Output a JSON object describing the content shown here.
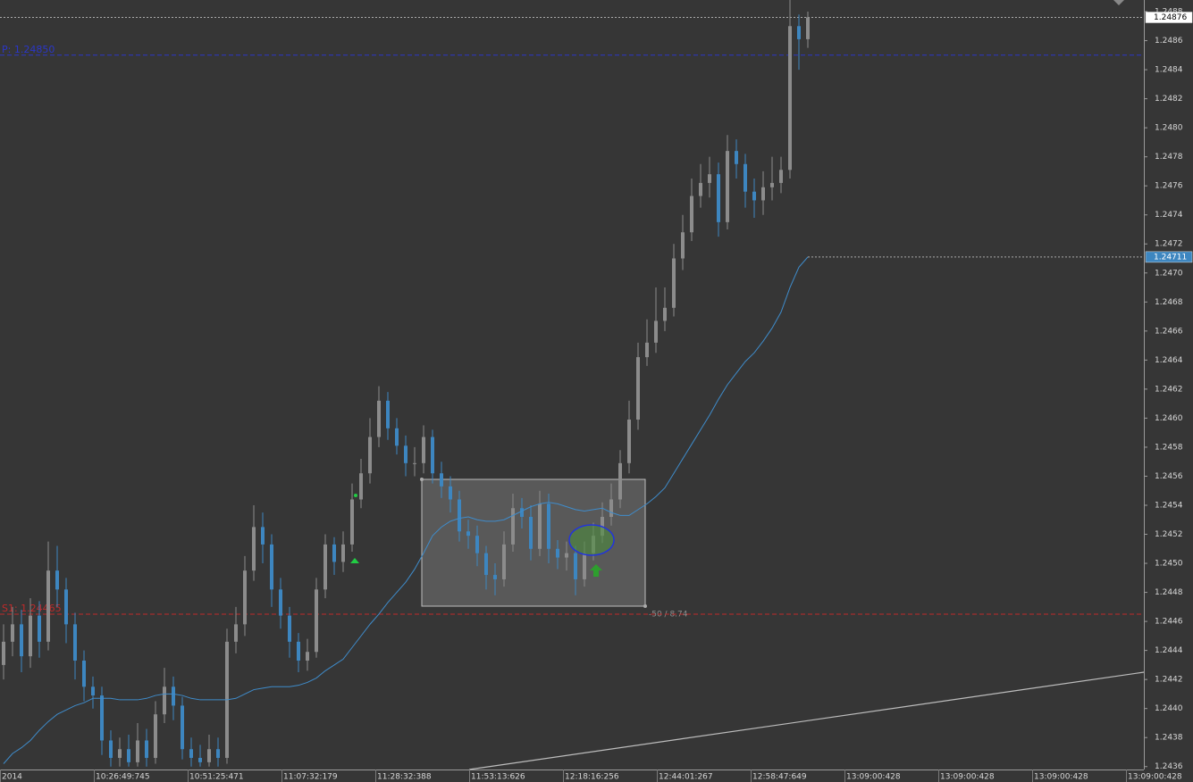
{
  "chart_data": {
    "type": "candlestick",
    "ylim": [
      1.24358,
      1.24888
    ],
    "yticks": [
      1.2436,
      1.2438,
      {
        "value": 1.244,
        "label": "1.2440"
      },
      1.2442,
      1.2444,
      1.2446,
      1.2448,
      {
        "value": 1.245,
        "label": "1.2450"
      },
      1.2452,
      1.2454,
      1.2456,
      1.2458,
      {
        "value": 1.246,
        "label": "1.2460"
      },
      1.2462,
      1.2464,
      1.2466,
      1.2468,
      {
        "value": 1.247,
        "label": "1.2470"
      },
      1.2472,
      1.2474,
      1.2476,
      1.2478,
      {
        "value": 1.248,
        "label": "1.2480"
      },
      1.2482,
      1.2484,
      1.2486,
      1.2488
    ],
    "x_labels": [
      "2014",
      "10:26:49:745",
      "10:51:25:471",
      "11:07:32:179",
      "11:28:32:388",
      "11:53:13:626",
      "12:18:16:256",
      "12:44:01:267",
      "12:58:47:649",
      "13:09:00:428",
      "13:09:00:428",
      "13:09:00:428",
      "13:09:00:428"
    ],
    "up_color": "#8c8c8c",
    "down_color": "#3d86c0",
    "open": [
      1.2443,
      1.24446,
      1.24458,
      1.24436,
      1.24464,
      1.24446,
      1.24495,
      1.24482,
      1.24458,
      1.24433,
      1.24415,
      1.24409,
      1.24378,
      1.24366,
      1.24372,
      1.24363,
      1.24378,
      1.24366,
      1.24396,
      1.24415,
      1.24402,
      1.24372,
      1.24366,
      1.24363,
      1.24372,
      1.24366,
      1.24446,
      1.24458,
      1.24495,
      1.24525,
      1.24513,
      1.24482,
      1.24464,
      1.24446,
      1.24433,
      1.24439,
      1.24482,
      1.24513,
      1.24501,
      1.24513,
      1.24544,
      1.24562,
      1.24587,
      1.24612,
      1.24593,
      1.24581,
      1.24569,
      1.24569,
      1.24587,
      1.24562,
      1.24553,
      1.24544,
      1.24522,
      1.24519,
      1.24507,
      1.24492,
      1.24489,
      1.24513,
      1.24538,
      1.24532,
      1.2451,
      1.24541,
      1.2451,
      1.24504,
      1.24507,
      1.24489,
      1.24507,
      1.24519,
      1.24532,
      1.24544,
      1.24569,
      1.24599,
      1.24642,
      1.24652,
      1.24667,
      1.24676,
      1.2471,
      1.24728,
      1.24753,
      1.24762,
      1.24768,
      1.24735,
      1.24784,
      1.24775,
      1.24756,
      1.2475,
      1.24759,
      1.24762,
      1.24771,
      1.2487,
      1.24861
    ],
    "high": [
      1.24458,
      1.2447,
      1.24468,
      1.24476,
      1.24474,
      1.24515,
      1.24512,
      1.2449,
      1.24466,
      1.2444,
      1.24422,
      1.24415,
      1.24385,
      1.2438,
      1.24382,
      1.2439,
      1.24386,
      1.24405,
      1.24428,
      1.24422,
      1.24408,
      1.2438,
      1.24375,
      1.24382,
      1.2438,
      1.24455,
      1.2447,
      1.24505,
      1.2454,
      1.24535,
      1.2452,
      1.2449,
      1.2447,
      1.24452,
      1.24448,
      1.2449,
      1.2452,
      1.24518,
      1.24522,
      1.24555,
      1.24572,
      1.246,
      1.24622,
      1.24618,
      1.246,
      1.24588,
      1.2458,
      1.24595,
      1.24592,
      1.2457,
      1.2456,
      1.2455,
      1.2453,
      1.24526,
      1.24512,
      1.245,
      1.24522,
      1.24548,
      1.24545,
      1.2454,
      1.2455,
      1.24548,
      1.24516,
      1.24515,
      1.24512,
      1.24515,
      1.24528,
      1.24542,
      1.24555,
      1.24578,
      1.24612,
      1.24652,
      1.24668,
      1.2469,
      1.2469,
      1.2472,
      1.2474,
      1.24765,
      1.24775,
      1.2478,
      1.24776,
      1.24795,
      1.24792,
      1.24782,
      1.24765,
      1.2477,
      1.2478,
      1.2478,
      1.2489,
      1.24878,
      1.2488
    ],
    "low": [
      1.2442,
      1.24436,
      1.24425,
      1.24428,
      1.24435,
      1.2444,
      1.2447,
      1.24445,
      1.2442,
      1.24405,
      1.244,
      1.24368,
      1.2436,
      1.2436,
      1.2436,
      1.2436,
      1.2436,
      1.24362,
      1.2439,
      1.24392,
      1.24365,
      1.2436,
      1.2436,
      1.2436,
      1.2436,
      1.24362,
      1.24438,
      1.2445,
      1.24488,
      1.245,
      1.2447,
      1.24455,
      1.24435,
      1.24425,
      1.24426,
      1.24435,
      1.24476,
      1.24492,
      1.24494,
      1.24508,
      1.24538,
      1.24555,
      1.2458,
      1.24585,
      1.24575,
      1.2456,
      1.2456,
      1.24562,
      1.24555,
      1.24545,
      1.24535,
      1.24515,
      1.2451,
      1.24498,
      1.24482,
      1.24478,
      1.24484,
      1.24508,
      1.24524,
      1.24502,
      1.24505,
      1.245,
      1.24496,
      1.24495,
      1.24478,
      1.24484,
      1.24502,
      1.24514,
      1.24526,
      1.24538,
      1.24562,
      1.24592,
      1.24636,
      1.24645,
      1.2466,
      1.2467,
      1.24702,
      1.24722,
      1.24745,
      1.24752,
      1.24725,
      1.2473,
      1.24765,
      1.24745,
      1.24738,
      1.2474,
      1.2475,
      1.24755,
      1.24765,
      1.2484,
      1.24855
    ],
    "close": [
      1.24446,
      1.24458,
      1.24436,
      1.24464,
      1.24446,
      1.24495,
      1.24482,
      1.24458,
      1.24433,
      1.24415,
      1.24409,
      1.24378,
      1.24366,
      1.24372,
      1.24363,
      1.24378,
      1.24366,
      1.24396,
      1.24415,
      1.24402,
      1.24372,
      1.24366,
      1.24363,
      1.24372,
      1.24366,
      1.24446,
      1.24458,
      1.24495,
      1.24525,
      1.24513,
      1.24482,
      1.24464,
      1.24446,
      1.24433,
      1.24439,
      1.24482,
      1.24513,
      1.24501,
      1.24513,
      1.24544,
      1.24562,
      1.24587,
      1.24612,
      1.24593,
      1.24581,
      1.24569,
      1.24569,
      1.24587,
      1.24562,
      1.24553,
      1.24544,
      1.24522,
      1.24519,
      1.24507,
      1.24492,
      1.24489,
      1.24513,
      1.24538,
      1.24532,
      1.2451,
      1.24541,
      1.2451,
      1.24504,
      1.24507,
      1.24489,
      1.24507,
      1.24519,
      1.24532,
      1.24544,
      1.24569,
      1.24599,
      1.24642,
      1.24652,
      1.24667,
      1.24676,
      1.2471,
      1.24728,
      1.24753,
      1.24762,
      1.24768,
      1.24735,
      1.24784,
      1.24775,
      1.24756,
      1.2475,
      1.24759,
      1.24762,
      1.24771,
      1.2487,
      1.24861,
      1.24876
    ],
    "ma": {
      "color": "#3f8ccb",
      "values": [
        1.24362,
        1.24369,
        1.24373,
        1.24378,
        1.24385,
        1.24391,
        1.24396,
        1.24399,
        1.24402,
        1.24404,
        1.24407,
        1.24407,
        1.24407,
        1.24406,
        1.24406,
        1.24406,
        1.24407,
        1.24409,
        1.2441,
        1.2441,
        1.24409,
        1.24407,
        1.24406,
        1.24406,
        1.24406,
        1.24406,
        1.24407,
        1.2441,
        1.24413,
        1.24414,
        1.24415,
        1.24415,
        1.24415,
        1.24416,
        1.24418,
        1.24421,
        1.24426,
        1.2443,
        1.24434,
        1.24442,
        1.2445,
        1.24458,
        1.24465,
        1.24473,
        1.2448,
        1.24487,
        1.24496,
        1.24507,
        1.24519,
        1.24525,
        1.24529,
        1.24531,
        1.24532,
        1.2453,
        1.24529,
        1.24529,
        1.2453,
        1.24533,
        1.24536,
        1.24539,
        1.24541,
        1.24542,
        1.24541,
        1.24539,
        1.24537,
        1.24536,
        1.24537,
        1.24538,
        1.24535,
        1.24533,
        1.24533,
        1.24537,
        1.24541,
        1.24546,
        1.24552,
        1.24562,
        1.24572,
        1.24582,
        1.24592,
        1.24602,
        1.24613,
        1.24623,
        1.24631,
        1.24639,
        1.24645,
        1.24653,
        1.24662,
        1.24673,
        1.2469,
        1.24704,
        1.24711
      ]
    },
    "ma_label": 1.24711,
    "bid": 1.24876,
    "levels": [
      {
        "label": "P: 1.24850",
        "value": 1.2485,
        "color": "#2b36c8"
      },
      {
        "label": "S1: 1.24465",
        "value": 1.24465,
        "color": "#c02a2a"
      }
    ],
    "annotation": "-50 / 8.74"
  }
}
